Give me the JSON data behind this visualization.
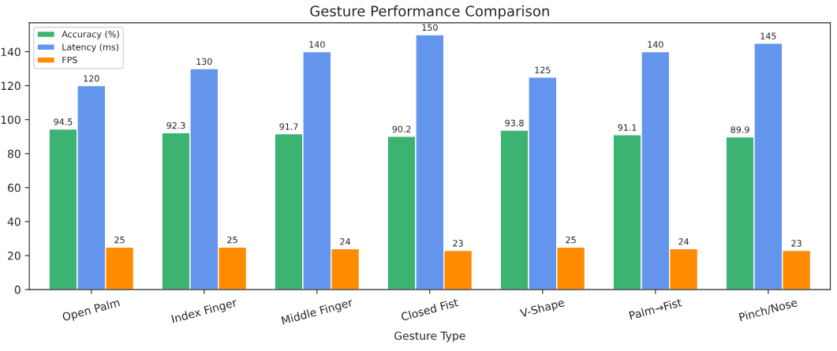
{
  "chart_data": {
    "type": "bar",
    "title": "Gesture Performance Comparison",
    "xlabel": "Gesture Type",
    "categories": [
      "Open Palm",
      "Index Finger",
      "Middle Finger",
      "Closed Fist",
      "V-Shape",
      "Palm→Fist",
      "Pinch/Nose"
    ],
    "series": [
      {
        "name": "Accuracy (%)",
        "color": "#3cb371",
        "values": [
          94.5,
          92.3,
          91.7,
          90.2,
          93.8,
          91.1,
          89.9
        ]
      },
      {
        "name": "Latency (ms)",
        "color": "#6495ed",
        "values": [
          120,
          130,
          140,
          150,
          125,
          140,
          145
        ]
      },
      {
        "name": "FPS",
        "color": "#ff8c00",
        "values": [
          25,
          25,
          24,
          23,
          25,
          24,
          23
        ]
      }
    ],
    "ylim": [
      0,
      157
    ],
    "yticks": [
      0,
      20,
      40,
      60,
      80,
      100,
      120,
      140
    ],
    "data_labels": true,
    "legend": "top left",
    "grid": false
  }
}
